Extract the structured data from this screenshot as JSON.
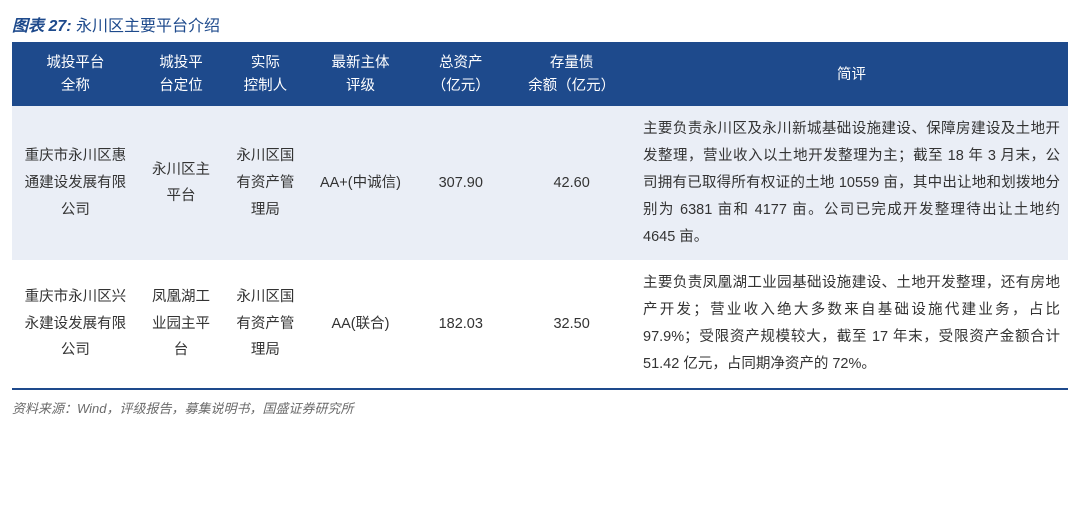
{
  "figure": {
    "index": "图表 27:",
    "name": "永川区主要平台介绍"
  },
  "table": {
    "header_bg": "#1e4a8c",
    "header_fg": "#ffffff",
    "row_even_bg": "#eaeef6",
    "row_odd_bg": "#ffffff",
    "border_color": "#1e4a8c",
    "font_size": 14.5,
    "columns": [
      {
        "key": "platform",
        "label": "城投平台\n全称"
      },
      {
        "key": "position",
        "label": "城投平\n台定位"
      },
      {
        "key": "controller",
        "label": "实际\n控制人"
      },
      {
        "key": "rating",
        "label": "最新主体\n评级"
      },
      {
        "key": "assets",
        "label": "总资产\n（亿元）"
      },
      {
        "key": "debt",
        "label": "存量债\n余额（亿元）"
      },
      {
        "key": "comment",
        "label": "简评"
      }
    ],
    "rows": [
      {
        "platform": "重庆市永川区惠通建设发展有限公司",
        "position": "永川区主平台",
        "controller": "永川区国有资产管理局",
        "rating": "AA+(中诚信)",
        "assets": "307.90",
        "debt": "42.60",
        "comment": "主要负责永川区及永川新城基础设施建设、保障房建设及土地开发整理，营业收入以土地开发整理为主；截至 18 年 3 月末，公司拥有已取得所有权证的土地 10559 亩，其中出让地和划拨地分别为 6381 亩和 4177 亩。公司已完成开发整理待出让土地约 4645 亩。"
      },
      {
        "platform": "重庆市永川区兴永建设发展有限公司",
        "position": "凤凰湖工业园主平台",
        "controller": "永川区国有资产管理局",
        "rating": "AA(联合)",
        "assets": "182.03",
        "debt": "32.50",
        "comment": "主要负责凤凰湖工业园基础设施建设、土地开发整理，还有房地产开发；营业收入绝大多数来自基础设施代建业务，占比 97.9%；受限资产规模较大，截至 17 年末，受限资产金额合计 51.42 亿元，占同期净资产的 72%。"
      }
    ]
  },
  "source": "资料来源：Wind，评级报告，募集说明书，国盛证券研究所"
}
